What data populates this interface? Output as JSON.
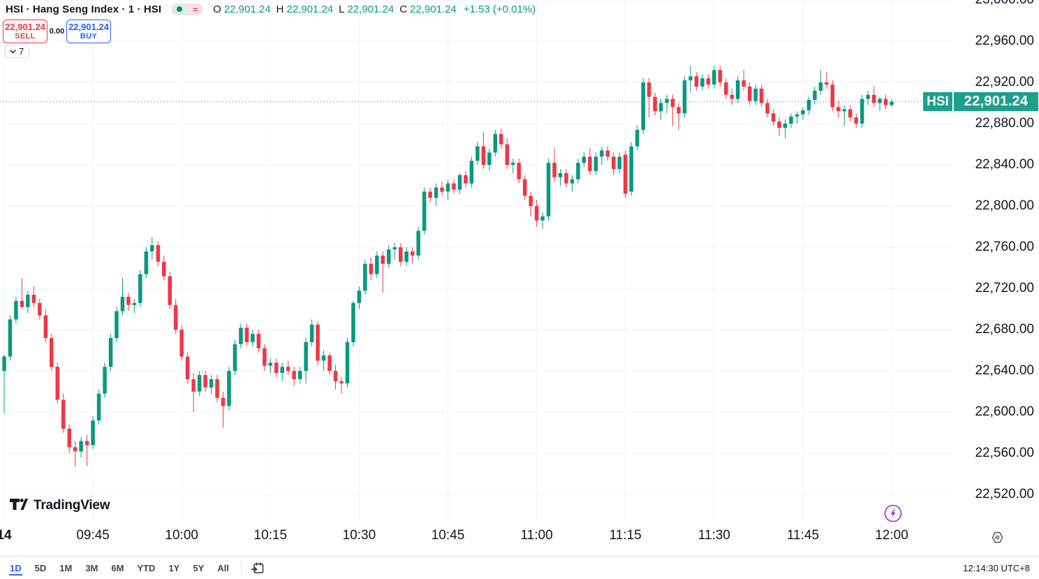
{
  "header": {
    "symbol_title": "HSI · Hang Seng Index · 1 · HSI",
    "status_pills": {
      "market_dot": "open",
      "approx_symbol": "≈"
    },
    "ohlc": {
      "o_label": "O",
      "o": "22,901.24",
      "h_label": "H",
      "h": "22,901.24",
      "l_label": "L",
      "l": "22,901.24",
      "c_label": "C",
      "c": "22,901.24",
      "change": "+1.53 (+0.01%)"
    },
    "sell_button": {
      "price": "22,901.24",
      "label": "SELL"
    },
    "spread": "0.00",
    "buy_button": {
      "price": "22,901.24",
      "label": "BUY"
    },
    "objects_badge": "7"
  },
  "price_axis": {
    "last_price_tag": "HSI",
    "last_price_text": "22,901.24"
  },
  "time_axis": {
    "ticks": [
      {
        "label": "14",
        "min": 0,
        "bold": true
      },
      {
        "label": "09:45",
        "min": 15
      },
      {
        "label": "10:00",
        "min": 30
      },
      {
        "label": "10:15",
        "min": 45
      },
      {
        "label": "10:30",
        "min": 60
      },
      {
        "label": "10:45",
        "min": 75
      },
      {
        "label": "11:00",
        "min": 90
      },
      {
        "label": "11:15",
        "min": 105
      },
      {
        "label": "11:30",
        "min": 120
      },
      {
        "label": "11:45",
        "min": 135
      },
      {
        "label": "12:00",
        "min": 150
      }
    ]
  },
  "toolbar": {
    "ranges": [
      "1D",
      "5D",
      "1M",
      "3M",
      "6M",
      "YTD",
      "1Y",
      "5Y",
      "All"
    ],
    "active": "1D",
    "timestamp": "12:14:30 UTC+8"
  },
  "logo": {
    "text": "TradingView"
  },
  "chart_data": {
    "type": "candlestick",
    "title": "HSI Hang Seng Index 1-minute",
    "symbol": "HSI",
    "interval_minutes": 1,
    "session_start": "09:30",
    "session_end": "12:00",
    "last_price": 22901.24,
    "ylim": [
      22493.7,
      23000
    ],
    "y_ticks": [
      23000,
      22960,
      22920,
      22880,
      22840,
      22800,
      22760,
      22720,
      22680,
      22640,
      22600,
      22560,
      22520
    ],
    "grid": true,
    "colors": {
      "up": "#089981",
      "down": "#f23645",
      "last_line": "#089981"
    },
    "candles": [
      [
        22640,
        22656,
        22599,
        22654
      ],
      [
        22654,
        22694,
        22650,
        22690
      ],
      [
        22690,
        22712,
        22686,
        22708
      ],
      [
        22708,
        22730,
        22700,
        22702
      ],
      [
        22702,
        22718,
        22696,
        22714
      ],
      [
        22714,
        22722,
        22702,
        22706
      ],
      [
        22706,
        22710,
        22690,
        22694
      ],
      [
        22694,
        22700,
        22668,
        22672
      ],
      [
        22672,
        22676,
        22640,
        22644
      ],
      [
        22644,
        22648,
        22608,
        22612
      ],
      [
        22612,
        22618,
        22580,
        22584
      ],
      [
        22584,
        22588,
        22560,
        22566
      ],
      [
        22566,
        22572,
        22547,
        22562
      ],
      [
        22562,
        22576,
        22556,
        22572
      ],
      [
        22572,
        22578,
        22548,
        22568
      ],
      [
        22568,
        22596,
        22564,
        22592
      ],
      [
        22592,
        22622,
        22588,
        22618
      ],
      [
        22618,
        22648,
        22614,
        22644
      ],
      [
        22644,
        22676,
        22640,
        22672
      ],
      [
        22672,
        22702,
        22668,
        22698
      ],
      [
        22698,
        22730,
        22694,
        22712
      ],
      [
        22712,
        22716,
        22698,
        22704
      ],
      [
        22704,
        22710,
        22696,
        22706
      ],
      [
        22706,
        22738,
        22702,
        22734
      ],
      [
        22734,
        22760,
        22730,
        22756
      ],
      [
        22756,
        22770,
        22748,
        22762
      ],
      [
        22762,
        22766,
        22742,
        22746
      ],
      [
        22746,
        22752,
        22728,
        22732
      ],
      [
        22732,
        22736,
        22700,
        22704
      ],
      [
        22704,
        22710,
        22676,
        22680
      ],
      [
        22680,
        22684,
        22650,
        22654
      ],
      [
        22654,
        22658,
        22628,
        22632
      ],
      [
        22632,
        22638,
        22600,
        22620
      ],
      [
        22620,
        22640,
        22616,
        22636
      ],
      [
        22636,
        22640,
        22620,
        22624
      ],
      [
        22624,
        22636,
        22618,
        22632
      ],
      [
        22632,
        22636,
        22610,
        22614
      ],
      [
        22614,
        22620,
        22585,
        22606
      ],
      [
        22606,
        22644,
        22602,
        22640
      ],
      [
        22640,
        22670,
        22636,
        22666
      ],
      [
        22666,
        22686,
        22662,
        22682
      ],
      [
        22682,
        22686,
        22664,
        22668
      ],
      [
        22668,
        22680,
        22664,
        22676
      ],
      [
        22676,
        22680,
        22658,
        22662
      ],
      [
        22662,
        22666,
        22640,
        22645
      ],
      [
        22645,
        22652,
        22638,
        22648
      ],
      [
        22648,
        22652,
        22634,
        22638
      ],
      [
        22638,
        22648,
        22630,
        22644
      ],
      [
        22644,
        22650,
        22636,
        22640
      ],
      [
        22640,
        22644,
        22626,
        22632
      ],
      [
        22632,
        22644,
        22628,
        22640
      ],
      [
        22640,
        22672,
        22628,
        22668
      ],
      [
        22668,
        22690,
        22664,
        22685
      ],
      [
        22685,
        22688,
        22645,
        22650
      ],
      [
        22650,
        22660,
        22640,
        22655
      ],
      [
        22655,
        22658,
        22636,
        22640
      ],
      [
        22640,
        22646,
        22622,
        22630
      ],
      [
        22630,
        22634,
        22618,
        22628
      ],
      [
        22628,
        22672,
        22624,
        22668
      ],
      [
        22668,
        22708,
        22664,
        22706
      ],
      [
        22706,
        22722,
        22700,
        22718
      ],
      [
        22718,
        22748,
        22714,
        22744
      ],
      [
        22744,
        22750,
        22728,
        22734
      ],
      [
        22734,
        22756,
        22730,
        22752
      ],
      [
        22752,
        22756,
        22716,
        22744
      ],
      [
        22744,
        22762,
        22740,
        22758
      ],
      [
        22758,
        22764,
        22748,
        22760
      ],
      [
        22760,
        22764,
        22742,
        22746
      ],
      [
        22746,
        22760,
        22742,
        22756
      ],
      [
        22756,
        22760,
        22744,
        22752
      ],
      [
        22752,
        22780,
        22748,
        22776
      ],
      [
        22776,
        22818,
        22772,
        22814
      ],
      [
        22814,
        22818,
        22804,
        22808
      ],
      [
        22808,
        22822,
        22800,
        22818
      ],
      [
        22818,
        22824,
        22810,
        22814
      ],
      [
        22814,
        22826,
        22806,
        22822
      ],
      [
        22822,
        22826,
        22812,
        22816
      ],
      [
        22816,
        22832,
        22812,
        22830
      ],
      [
        22830,
        22834,
        22818,
        22822
      ],
      [
        22822,
        22848,
        22818,
        22844
      ],
      [
        22844,
        22862,
        22840,
        22858
      ],
      [
        22858,
        22872,
        22836,
        22840
      ],
      [
        22840,
        22856,
        22834,
        22852
      ],
      [
        22852,
        22874,
        22848,
        22870
      ],
      [
        22870,
        22875,
        22856,
        22860
      ],
      [
        22860,
        22866,
        22836,
        22840
      ],
      [
        22840,
        22846,
        22832,
        22842
      ],
      [
        22842,
        22846,
        22822,
        22826
      ],
      [
        22826,
        22830,
        22806,
        22810
      ],
      [
        22810,
        22814,
        22790,
        22800
      ],
      [
        22800,
        22806,
        22780,
        22786
      ],
      [
        22786,
        22794,
        22778,
        22790
      ],
      [
        22790,
        22846,
        22786,
        22842
      ],
      [
        22842,
        22856,
        22824,
        22828
      ],
      [
        22828,
        22836,
        22820,
        22832
      ],
      [
        22832,
        22836,
        22818,
        22822
      ],
      [
        22822,
        22830,
        22814,
        22826
      ],
      [
        22826,
        22846,
        22822,
        22842
      ],
      [
        22842,
        22852,
        22838,
        22848
      ],
      [
        22848,
        22856,
        22830,
        22834
      ],
      [
        22834,
        22852,
        22830,
        22848
      ],
      [
        22848,
        22858,
        22840,
        22854
      ],
      [
        22854,
        22858,
        22844,
        22848
      ],
      [
        22848,
        22852,
        22830,
        22836
      ],
      [
        22836,
        22852,
        22832,
        22848
      ],
      [
        22850,
        22854,
        22808,
        22812
      ],
      [
        22814,
        22862,
        22810,
        22858
      ],
      [
        22858,
        22878,
        22854,
        22874
      ],
      [
        22874,
        22924,
        22870,
        22920
      ],
      [
        22920,
        22924,
        22886,
        22906
      ],
      [
        22906,
        22910,
        22888,
        22892
      ],
      [
        22892,
        22904,
        22884,
        22900
      ],
      [
        22900,
        22908,
        22890,
        22904
      ],
      [
        22904,
        22908,
        22878,
        22896
      ],
      [
        22896,
        22900,
        22874,
        22890
      ],
      [
        22890,
        22926,
        22886,
        22922
      ],
      [
        22922,
        22936,
        22910,
        22926
      ],
      [
        22926,
        22930,
        22912,
        22916
      ],
      [
        22916,
        22928,
        22912,
        22924
      ],
      [
        22924,
        22928,
        22914,
        22918
      ],
      [
        22918,
        22936,
        22914,
        22932
      ],
      [
        22932,
        22936,
        22916,
        22920
      ],
      [
        22920,
        22924,
        22904,
        22908
      ],
      [
        22908,
        22914,
        22898,
        22904
      ],
      [
        22904,
        22926,
        22900,
        22922
      ],
      [
        22922,
        22932,
        22912,
        22916
      ],
      [
        22916,
        22920,
        22898,
        22902
      ],
      [
        22902,
        22918,
        22898,
        22914
      ],
      [
        22914,
        22918,
        22896,
        22900
      ],
      [
        22900,
        22904,
        22886,
        22890
      ],
      [
        22890,
        22894,
        22878,
        22882
      ],
      [
        22882,
        22886,
        22868,
        22876
      ],
      [
        22876,
        22884,
        22866,
        22880
      ],
      [
        22880,
        22890,
        22876,
        22887
      ],
      [
        22887,
        22892,
        22880,
        22889
      ],
      [
        22889,
        22896,
        22884,
        22893
      ],
      [
        22893,
        22906,
        22889,
        22903
      ],
      [
        22903,
        22916,
        22899,
        22912
      ],
      [
        22912,
        22932,
        22908,
        22920
      ],
      [
        22920,
        22930,
        22914,
        22918
      ],
      [
        22918,
        22922,
        22892,
        22896
      ],
      [
        22896,
        22902,
        22886,
        22892
      ],
      [
        22892,
        22898,
        22878,
        22894
      ],
      [
        22894,
        22898,
        22882,
        22886
      ],
      [
        22886,
        22890,
        22876,
        22880
      ],
      [
        22880,
        22908,
        22876,
        22904
      ],
      [
        22904,
        22912,
        22898,
        22908
      ],
      [
        22908,
        22916,
        22896,
        22900
      ],
      [
        22900,
        22906,
        22892,
        22904
      ],
      [
        22904,
        22908,
        22894,
        22898
      ],
      [
        22898,
        22904,
        22896,
        22901.24
      ]
    ]
  }
}
